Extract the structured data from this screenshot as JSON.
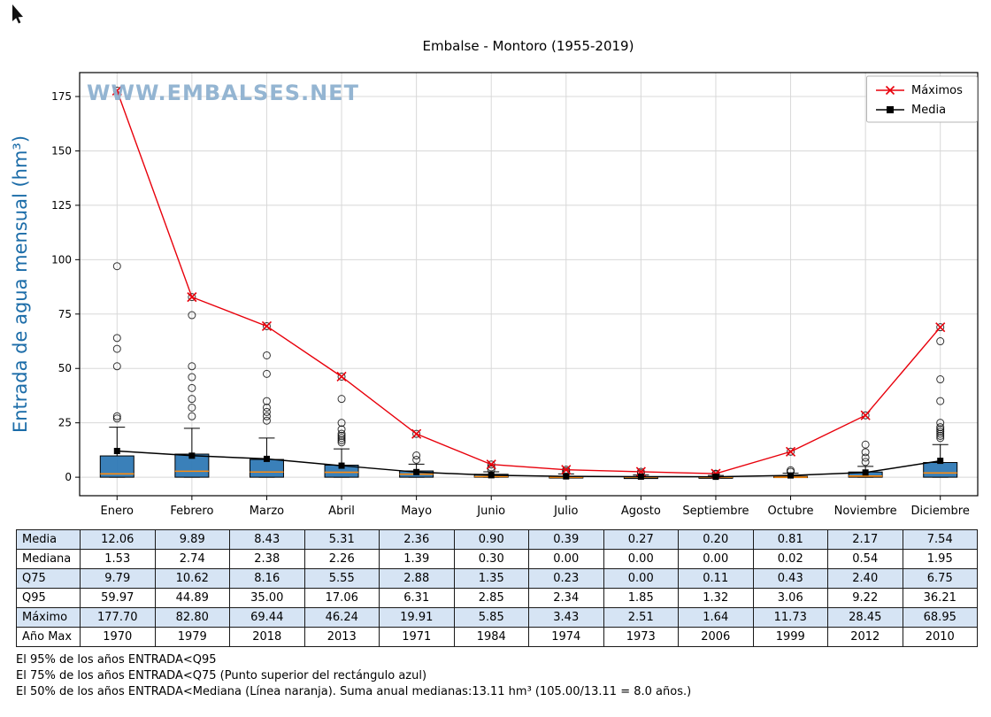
{
  "chart_data": {
    "type": "boxplot",
    "title": "Embalse - Montoro (1955-2019)",
    "watermark": "WWW.EMBALSES.NET",
    "ylabel": "Entrada de agua mensual (hm³)",
    "ylim": [
      -8.5,
      186
    ],
    "yticks": [
      0,
      25,
      50,
      75,
      100,
      125,
      150,
      175
    ],
    "categories": [
      "Enero",
      "Febrero",
      "Marzo",
      "Abril",
      "Mayo",
      "Junio",
      "Julio",
      "Agosto",
      "Septiembre",
      "Octubre",
      "Noviembre",
      "Diciembre"
    ],
    "legend": [
      {
        "label": "Máximos",
        "color": "#e8000b",
        "marker": "x"
      },
      {
        "label": "Media",
        "color": "#000000",
        "marker": "square"
      }
    ],
    "series": [
      {
        "name": "Máximos",
        "values": [
          177.7,
          82.8,
          69.44,
          46.24,
          19.91,
          5.85,
          3.43,
          2.51,
          1.64,
          11.73,
          28.45,
          68.95
        ]
      },
      {
        "name": "Media",
        "values": [
          12.06,
          9.89,
          8.43,
          5.31,
          2.36,
          0.9,
          0.39,
          0.27,
          0.2,
          0.81,
          2.17,
          7.54
        ]
      }
    ],
    "box": {
      "q25": [
        0,
        0,
        0,
        0,
        0,
        0,
        0,
        0,
        0,
        0,
        0,
        0
      ],
      "median": [
        1.53,
        2.74,
        2.38,
        2.26,
        1.39,
        0.3,
        0.0,
        0.0,
        0.0,
        0.02,
        0.54,
        1.95
      ],
      "q75": [
        9.79,
        10.62,
        8.16,
        5.55,
        2.88,
        1.35,
        0.23,
        0.0,
        0.11,
        0.43,
        2.4,
        6.75
      ],
      "whisker_low": [
        0,
        0,
        0,
        0,
        0,
        0,
        0,
        0,
        0,
        0,
        0,
        0
      ],
      "whisker_high": [
        23,
        22.5,
        18,
        13,
        6,
        2.5,
        1.5,
        1.0,
        0.8,
        1.8,
        5,
        15
      ],
      "outliers": [
        [
          27,
          28,
          51,
          59,
          64,
          97,
          177.7
        ],
        [
          28,
          32,
          36,
          41,
          46,
          51,
          74.5,
          82.8
        ],
        [
          26,
          28,
          30,
          32,
          35,
          47.5,
          56,
          69.44
        ],
        [
          16,
          17,
          18,
          19,
          20,
          22,
          25,
          36,
          46.24
        ],
        [
          8,
          10,
          19.91
        ],
        [
          3.5,
          4.5,
          5.85
        ],
        [
          2.0,
          2.8,
          3.43
        ],
        [
          1.8,
          2.51
        ],
        [
          1.3,
          1.64
        ],
        [
          2.5,
          3.2,
          11.73
        ],
        [
          7,
          9,
          11.5,
          15,
          28.45
        ],
        [
          18,
          19,
          20,
          21,
          22,
          23,
          25,
          35,
          45,
          62.5,
          68.95
        ]
      ]
    },
    "colors": {
      "box_fill": "#2f79b5",
      "median": "#ff8c0e",
      "max_line": "#e8000b",
      "mean_line": "#000000",
      "grid": "#d8d8d8"
    }
  },
  "table": {
    "rows": [
      {
        "label": "Media",
        "values": [
          "12.06",
          "9.89",
          "8.43",
          "5.31",
          "2.36",
          "0.90",
          "0.39",
          "0.27",
          "0.20",
          "0.81",
          "2.17",
          "7.54"
        ]
      },
      {
        "label": "Mediana",
        "values": [
          "1.53",
          "2.74",
          "2.38",
          "2.26",
          "1.39",
          "0.30",
          "0.00",
          "0.00",
          "0.00",
          "0.02",
          "0.54",
          "1.95"
        ]
      },
      {
        "label": "Q75",
        "values": [
          "9.79",
          "10.62",
          "8.16",
          "5.55",
          "2.88",
          "1.35",
          "0.23",
          "0.00",
          "0.11",
          "0.43",
          "2.40",
          "6.75"
        ]
      },
      {
        "label": "Q95",
        "values": [
          "59.97",
          "44.89",
          "35.00",
          "17.06",
          "6.31",
          "2.85",
          "2.34",
          "1.85",
          "1.32",
          "3.06",
          "9.22",
          "36.21"
        ]
      },
      {
        "label": "Máximo",
        "values": [
          "177.70",
          "82.80",
          "69.44",
          "46.24",
          "19.91",
          "5.85",
          "3.43",
          "2.51",
          "1.64",
          "11.73",
          "28.45",
          "68.95"
        ]
      },
      {
        "label": "Año Max",
        "values": [
          "1970",
          "1979",
          "2018",
          "2013",
          "1971",
          "1984",
          "1974",
          "1973",
          "2006",
          "1999",
          "2012",
          "2010"
        ]
      }
    ]
  },
  "footnotes": [
    "El 95% de los años ENTRADA<Q95",
    "El 75% de los años ENTRADA<Q75 (Punto superior del rectángulo azul)",
    "El 50% de los años ENTRADA<Mediana (Línea naranja). Suma anual medianas:13.11 hm³ (105.00/13.11 = 8.0 años.)"
  ]
}
